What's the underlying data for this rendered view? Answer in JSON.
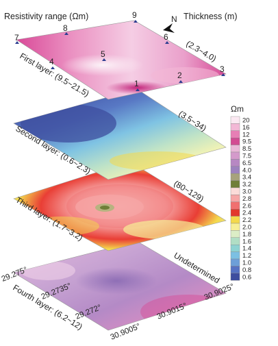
{
  "header": {
    "resistivity_label": "Resistivity range (Ωm)",
    "north_label": "N",
    "thickness_label": "Thickness (m)"
  },
  "layers": [
    {
      "name": "First layer: (9.5~21.5)",
      "thickness": "(2.3~4.0)"
    },
    {
      "name": "Second layer: (0.6~2.3)",
      "thickness": "(3.5~34)"
    },
    {
      "name": "Third layer: (1.7~3.2)",
      "thickness": "(80~129)"
    },
    {
      "name": "Fourth layer: (6.2~12)",
      "thickness": "Undetermined"
    }
  ],
  "survey_points": [
    "1",
    "2",
    "3",
    "4",
    "5",
    "6",
    "7",
    "8",
    "9"
  ],
  "latitude_ticks": [
    "29.275°",
    "29.2735°",
    "29.272°"
  ],
  "longitude_ticks": [
    "30.9005°",
    "30.9015°",
    "30.9025°"
  ],
  "legend": {
    "unit": "Ωm",
    "labels": [
      "20",
      "16",
      "12",
      "9.5",
      "8.5",
      "7.5",
      "6.5",
      "4.0",
      "3.4",
      "3.2",
      "3.0",
      "2.8",
      "2.6",
      "2.4",
      "2.2",
      "2.0",
      "1.8",
      "1.6",
      "1.4",
      "1.2",
      "1.0",
      "0.8",
      "0.6"
    ],
    "colors": [
      "#fbe9f2",
      "#f3b8d6",
      "#e77fb5",
      "#d24b93",
      "#e9b7d8",
      "#d49acb",
      "#b788c3",
      "#9d82be",
      "#a7a27c",
      "#6f7f38",
      "#fbdcd9",
      "#f6a7a7",
      "#f07070",
      "#e2382d",
      "#f4d94c",
      "#f7ef96",
      "#dcedc6",
      "#b1dec5",
      "#8ed3d2",
      "#7cc0e3",
      "#6d9fd8",
      "#5672c3",
      "#3e4d9e"
    ]
  }
}
